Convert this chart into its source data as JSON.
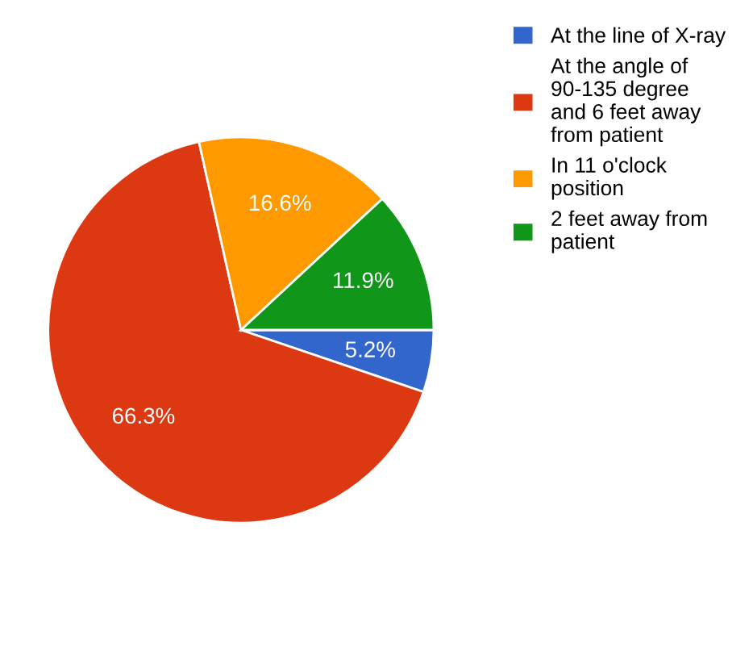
{
  "chart_data": {
    "type": "pie",
    "categories": [
      "At the line of X-ray",
      "At the angle of\n90-135 degree\nand 6 feet away\nfrom patient",
      "In 11 o'clock\nposition",
      "2 feet away from\npatient"
    ],
    "values": [
      5.2,
      66.3,
      16.6,
      11.9
    ],
    "colors": [
      "#3366cc",
      "#dc3912",
      "#ff9900",
      "#109618"
    ],
    "value_labels": [
      "5.2%",
      "66.3%",
      "16.6%",
      "11.9%"
    ],
    "legend": "right"
  }
}
